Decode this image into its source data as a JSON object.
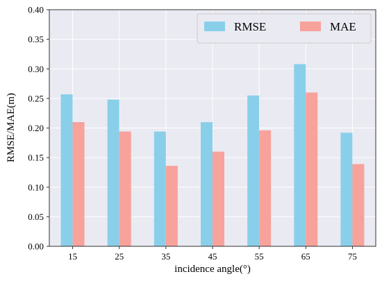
{
  "chart_data": {
    "type": "bar",
    "categories": [
      "15",
      "25",
      "35",
      "45",
      "55",
      "65",
      "75"
    ],
    "series": [
      {
        "name": "RMSE",
        "color": "#89CFEA",
        "values": [
          0.257,
          0.248,
          0.194,
          0.21,
          0.255,
          0.308,
          0.192
        ]
      },
      {
        "name": "MAE",
        "color": "#F7A29B",
        "values": [
          0.21,
          0.194,
          0.136,
          0.16,
          0.196,
          0.26,
          0.139
        ]
      }
    ],
    "xlabel": "incidence angle(°)",
    "ylabel": "RMSE/MAE(m)",
    "ylim": [
      0,
      0.4
    ],
    "yticks": [
      "0.00",
      "0.05",
      "0.10",
      "0.15",
      "0.20",
      "0.25",
      "0.30",
      "0.35",
      "0.40"
    ],
    "grid": true,
    "background": "#EAEAF2",
    "legend": {
      "position": "top-right",
      "ncol": 2
    }
  }
}
